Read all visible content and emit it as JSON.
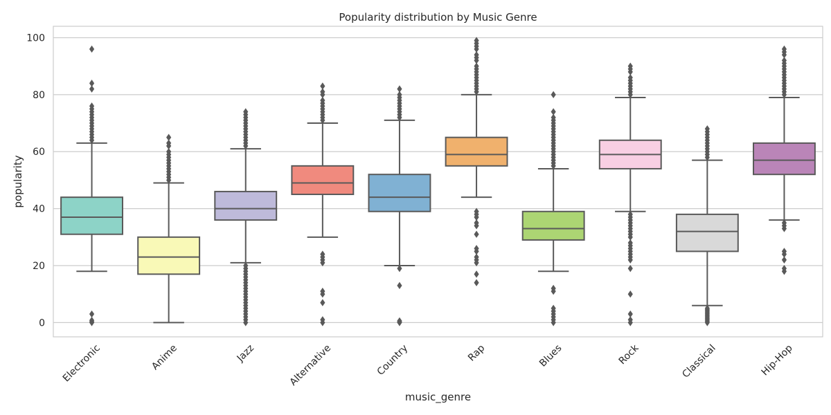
{
  "chart_data": {
    "type": "boxplot",
    "title": "Popularity distribution by Music Genre",
    "xlabel": "music_genre",
    "ylabel": "popularity",
    "ylim": [
      -5,
      104
    ],
    "yticks": [
      0,
      20,
      40,
      60,
      80,
      100
    ],
    "grid": true,
    "categories": [
      "Electronic",
      "Anime",
      "Jazz",
      "Alternative",
      "Country",
      "Rap",
      "Blues",
      "Rock",
      "Classical",
      "Hip-Hop"
    ],
    "boxes": [
      {
        "category": "Electronic",
        "color": "#8dd3c7",
        "whisker_low": 18,
        "q1": 31,
        "median": 37,
        "q3": 44,
        "whisker_high": 63,
        "outliers": [
          0,
          0.3,
          0.8,
          3,
          64,
          65,
          66,
          67,
          68,
          69,
          70,
          71,
          72,
          73,
          74,
          75,
          76,
          82,
          84,
          96
        ]
      },
      {
        "category": "Anime",
        "color": "#f9f9b7",
        "whisker_low": 0,
        "q1": 17,
        "median": 23,
        "q3": 30,
        "whisker_high": 49,
        "outliers": [
          50,
          51,
          52,
          53,
          54,
          55,
          56,
          57,
          58,
          59,
          60,
          62,
          63,
          65
        ]
      },
      {
        "category": "Jazz",
        "color": "#bebada",
        "whisker_low": 21,
        "q1": 36,
        "median": 40,
        "q3": 46,
        "whisker_high": 61,
        "outliers": [
          0,
          1,
          2,
          3,
          4,
          5,
          6,
          7,
          8,
          9,
          10,
          11,
          12,
          13,
          14,
          15,
          16,
          17,
          18,
          19,
          20,
          62,
          63,
          64,
          65,
          66,
          67,
          68,
          69,
          70,
          71,
          72,
          73,
          74
        ]
      },
      {
        "category": "Alternative",
        "color": "#f08a7e",
        "whisker_low": 30,
        "q1": 45,
        "median": 49,
        "q3": 55,
        "whisker_high": 70,
        "outliers": [
          0,
          1,
          7,
          10,
          11,
          21,
          22,
          23,
          24,
          71,
          72,
          73,
          74,
          75,
          76,
          77,
          78,
          80,
          81,
          83
        ]
      },
      {
        "category": "Country",
        "color": "#80b1d3",
        "whisker_low": 20,
        "q1": 39,
        "median": 44,
        "q3": 52,
        "whisker_high": 71,
        "outliers": [
          0,
          0.3,
          0.6,
          13,
          19,
          72,
          73,
          74,
          75,
          76,
          77,
          78,
          79,
          80,
          82
        ]
      },
      {
        "category": "Rap",
        "color": "#f0b16d",
        "whisker_low": 44,
        "q1": 55,
        "median": 59,
        "q3": 65,
        "whisker_high": 80,
        "outliers": [
          14,
          17,
          21,
          22,
          23,
          25,
          26,
          31,
          34,
          35,
          37,
          38,
          39,
          81,
          82,
          83,
          84,
          85,
          86,
          87,
          88,
          89,
          90,
          92,
          93,
          94,
          96,
          97,
          98,
          99
        ]
      },
      {
        "category": "Blues",
        "color": "#acd573",
        "whisker_low": 18,
        "q1": 29,
        "median": 33,
        "q3": 39,
        "whisker_high": 54,
        "outliers": [
          0,
          1,
          2,
          3,
          4,
          5,
          11,
          12,
          55,
          56,
          57,
          58,
          59,
          60,
          61,
          62,
          63,
          64,
          65,
          66,
          67,
          68,
          69,
          70,
          71,
          72,
          74,
          80
        ]
      },
      {
        "category": "Rock",
        "color": "#f8cfe3",
        "whisker_low": 39,
        "q1": 54,
        "median": 59,
        "q3": 64,
        "whisker_high": 79,
        "outliers": [
          0,
          1,
          3,
          10,
          19,
          22,
          23,
          24,
          25,
          26,
          27,
          28,
          30,
          31,
          32,
          33,
          34,
          35,
          36,
          37,
          38,
          80,
          81,
          82,
          83,
          84,
          85,
          86,
          88,
          89,
          90
        ]
      },
      {
        "category": "Classical",
        "color": "#d9d9d9",
        "whisker_low": 6,
        "q1": 25,
        "median": 32,
        "q3": 38,
        "whisker_high": 57,
        "outliers": [
          0,
          0.5,
          1,
          1.5,
          2,
          2.5,
          3,
          3.5,
          4,
          4.5,
          5,
          58,
          59,
          60,
          61,
          62,
          63,
          64,
          65,
          66,
          67,
          68
        ]
      },
      {
        "category": "Hip-Hop",
        "color": "#ba85b8",
        "whisker_low": 36,
        "q1": 52,
        "median": 57,
        "q3": 63,
        "whisker_high": 79,
        "outliers": [
          18,
          19,
          22,
          24,
          25,
          33,
          34,
          35,
          80,
          81,
          82,
          83,
          84,
          85,
          86,
          87,
          88,
          89,
          90,
          91,
          92,
          94,
          95,
          96
        ]
      }
    ],
    "line_color": "#595959",
    "grid_color": "#cccccc"
  }
}
